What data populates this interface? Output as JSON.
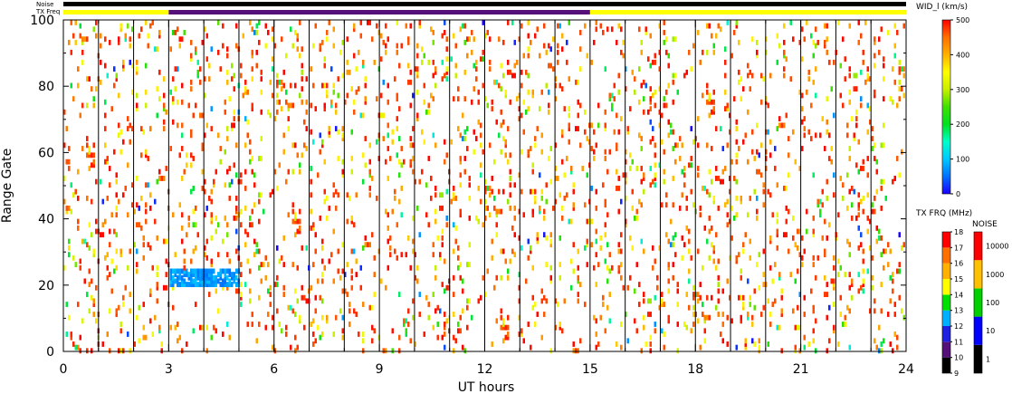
{
  "chart_data": {
    "type": "heatmap",
    "xlabel": "UT hours",
    "ylabel": "Range Gate",
    "xlim": [
      0,
      24
    ],
    "ylim": [
      0,
      100
    ],
    "xticks": [
      "0",
      "3",
      "6",
      "9",
      "12",
      "15",
      "18",
      "21",
      "24"
    ],
    "yticks": [
      "0",
      "20",
      "40",
      "60",
      "80",
      "100"
    ],
    "scan_boundaries_hours": [
      1,
      2,
      3,
      4,
      5,
      6,
      7,
      8,
      9,
      10,
      11,
      12,
      13,
      14,
      15,
      16,
      17,
      18,
      19,
      20,
      21,
      22,
      23
    ],
    "strip_labels": {
      "noise": "Noise",
      "txfreq": "TX Freq"
    },
    "noise_strip": [
      {
        "start": 0,
        "end": 24,
        "value": 1
      }
    ],
    "txfreq_strip": [
      {
        "start": 0,
        "end": 3,
        "value": 14
      },
      {
        "start": 3,
        "end": 15,
        "value": 10
      },
      {
        "start": 15,
        "end": 24,
        "value": 14
      }
    ],
    "cluster": {
      "x_start": 3.0,
      "x_end": 5.0,
      "gate_start": 20,
      "gate_end": 25,
      "width_kms": [
        50,
        100
      ]
    },
    "scatter_density": 0.065,
    "colorbars": [
      {
        "title": "WID_l (km/s)",
        "ticks": [
          "0",
          "100",
          "200",
          "300",
          "400",
          "500"
        ],
        "range": [
          0,
          500
        ]
      },
      {
        "title": "TX FRQ (MHz)",
        "ticks": [
          "9",
          "10",
          "11",
          "12",
          "13",
          "14",
          "15",
          "16",
          "17",
          "18"
        ],
        "range": [
          9,
          18
        ]
      },
      {
        "title": "NOISE",
        "ticks": [
          "1",
          "10",
          "100",
          "1000",
          "10000"
        ]
      }
    ]
  }
}
